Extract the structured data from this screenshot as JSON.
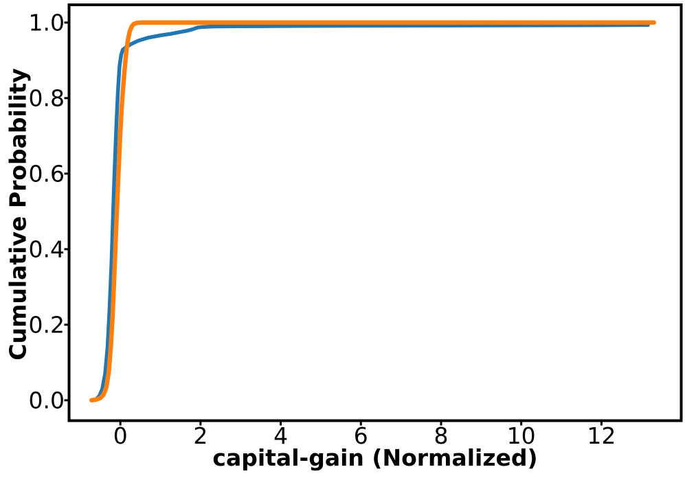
{
  "figure": {
    "background": "#ffffff",
    "axis_color": "#000000"
  },
  "chart_data": {
    "type": "line",
    "subtype": "cumulative-distribution",
    "title": "",
    "xlabel": "capital-gain (Normalized)",
    "ylabel": "Cumulative Probability",
    "xlim": [
      -1.28,
      13.99
    ],
    "ylim": [
      -0.054,
      1.047
    ],
    "grid": false,
    "legend": "none",
    "xticks": {
      "values": [
        0,
        2,
        4,
        6,
        8,
        10,
        12
      ],
      "labels": [
        "0",
        "2",
        "4",
        "6",
        "8",
        "10",
        "12"
      ]
    },
    "yticks": {
      "values": [
        0.0,
        0.2,
        0.4,
        0.6,
        0.8,
        1.0
      ],
      "labels": [
        "0.0",
        "0.2",
        "0.4",
        "0.6",
        "0.8",
        "1.0"
      ]
    },
    "series": [
      {
        "id": "blue-cdf",
        "color": "#1f77b4",
        "linewidth": 5.5,
        "points": [
          [
            -0.66,
            0.0
          ],
          [
            -0.6,
            0.003
          ],
          [
            -0.52,
            0.012
          ],
          [
            -0.45,
            0.03
          ],
          [
            -0.38,
            0.07
          ],
          [
            -0.32,
            0.14
          ],
          [
            -0.27,
            0.24
          ],
          [
            -0.22,
            0.37
          ],
          [
            -0.18,
            0.5
          ],
          [
            -0.14,
            0.62
          ],
          [
            -0.1,
            0.73
          ],
          [
            -0.06,
            0.82
          ],
          [
            -0.02,
            0.885
          ],
          [
            0.02,
            0.915
          ],
          [
            0.06,
            0.928
          ],
          [
            0.12,
            0.933
          ],
          [
            0.25,
            0.942
          ],
          [
            0.45,
            0.952
          ],
          [
            0.7,
            0.96
          ],
          [
            1.0,
            0.966
          ],
          [
            1.25,
            0.97
          ],
          [
            1.45,
            0.974
          ],
          [
            1.65,
            0.978
          ],
          [
            1.8,
            0.982
          ],
          [
            1.93,
            0.987
          ],
          [
            2.05,
            0.9885
          ],
          [
            2.3,
            0.9895
          ],
          [
            2.8,
            0.99
          ],
          [
            3.5,
            0.9905
          ],
          [
            4.5,
            0.991
          ],
          [
            6.0,
            0.9915
          ],
          [
            8.0,
            0.992
          ],
          [
            10.0,
            0.9925
          ],
          [
            12.0,
            0.993
          ],
          [
            13.16,
            0.9935
          ]
        ]
      },
      {
        "id": "orange-cdf",
        "color": "#ff7f0e",
        "linewidth": 6.5,
        "points": [
          [
            -0.72,
            0.0
          ],
          [
            -0.6,
            0.002
          ],
          [
            -0.5,
            0.006
          ],
          [
            -0.42,
            0.015
          ],
          [
            -0.35,
            0.035
          ],
          [
            -0.29,
            0.075
          ],
          [
            -0.24,
            0.14
          ],
          [
            -0.195,
            0.22
          ],
          [
            -0.155,
            0.32
          ],
          [
            -0.115,
            0.43
          ],
          [
            -0.08,
            0.52
          ],
          [
            -0.045,
            0.61
          ],
          [
            -0.01,
            0.69
          ],
          [
            0.03,
            0.77
          ],
          [
            0.07,
            0.83
          ],
          [
            0.11,
            0.88
          ],
          [
            0.15,
            0.925
          ],
          [
            0.19,
            0.955
          ],
          [
            0.235,
            0.977
          ],
          [
            0.285,
            0.99
          ],
          [
            0.34,
            0.9965
          ],
          [
            0.42,
            0.9993
          ],
          [
            0.55,
            1.0
          ],
          [
            13.31,
            1.0
          ]
        ]
      }
    ]
  }
}
